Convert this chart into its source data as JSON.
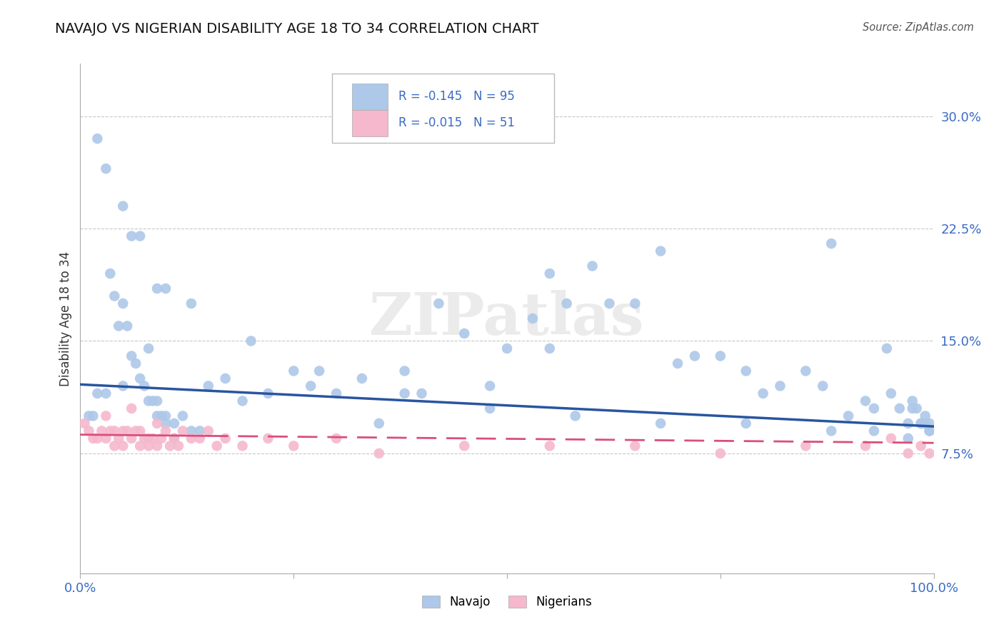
{
  "title": "NAVAJO VS NIGERIAN DISABILITY AGE 18 TO 34 CORRELATION CHART",
  "source_text": "Source: ZipAtlas.com",
  "ylabel": "Disability Age 18 to 34",
  "xlim": [
    0,
    1.0
  ],
  "ylim": [
    -0.005,
    0.335
  ],
  "yticks": [
    0.075,
    0.15,
    0.225,
    0.3
  ],
  "ytick_labels": [
    "7.5%",
    "15.0%",
    "22.5%",
    "30.0%"
  ],
  "navajo_R": -0.145,
  "navajo_N": 95,
  "nigerian_R": -0.015,
  "nigerian_N": 51,
  "navajo_color": "#adc8e8",
  "nigerian_color": "#f5b8cc",
  "navajo_line_color": "#2955a0",
  "nigerian_line_color": "#d94f7a",
  "background_color": "#ffffff",
  "grid_color": "#c8c8c8",
  "watermark_text": "ZIPatlas",
  "navajo_line_x0": 0.0,
  "navajo_line_y0": 0.121,
  "navajo_line_x1": 1.0,
  "navajo_line_y1": 0.093,
  "nigerian_line_x0": 0.0,
  "nigerian_line_y0": 0.0875,
  "nigerian_line_x1": 1.0,
  "nigerian_line_y1": 0.082,
  "navajo_x": [
    0.01,
    0.015,
    0.02,
    0.03,
    0.035,
    0.04,
    0.045,
    0.05,
    0.05,
    0.055,
    0.06,
    0.065,
    0.07,
    0.075,
    0.08,
    0.08,
    0.085,
    0.09,
    0.09,
    0.095,
    0.1,
    0.1,
    0.11,
    0.11,
    0.12,
    0.13,
    0.14,
    0.15,
    0.17,
    0.19,
    0.22,
    0.25,
    0.27,
    0.3,
    0.33,
    0.35,
    0.38,
    0.4,
    0.42,
    0.45,
    0.48,
    0.5,
    0.53,
    0.55,
    0.57,
    0.6,
    0.62,
    0.65,
    0.68,
    0.7,
    0.72,
    0.75,
    0.78,
    0.8,
    0.82,
    0.85,
    0.87,
    0.9,
    0.92,
    0.93,
    0.95,
    0.96,
    0.97,
    0.975,
    0.98,
    0.985,
    0.99,
    0.99,
    0.995,
    0.995,
    0.03,
    0.05,
    0.07,
    0.09,
    0.13,
    0.2,
    0.28,
    0.38,
    0.48,
    0.58,
    0.68,
    0.78,
    0.88,
    0.93,
    0.97,
    0.02,
    0.06,
    0.1,
    0.55,
    0.88,
    0.945,
    0.975,
    0.985,
    0.99,
    0.995
  ],
  "navajo_y": [
    0.1,
    0.1,
    0.115,
    0.115,
    0.195,
    0.18,
    0.16,
    0.175,
    0.12,
    0.16,
    0.14,
    0.135,
    0.125,
    0.12,
    0.11,
    0.145,
    0.11,
    0.11,
    0.1,
    0.1,
    0.1,
    0.095,
    0.095,
    0.085,
    0.1,
    0.09,
    0.09,
    0.12,
    0.125,
    0.11,
    0.115,
    0.13,
    0.12,
    0.115,
    0.125,
    0.095,
    0.13,
    0.115,
    0.175,
    0.155,
    0.12,
    0.145,
    0.165,
    0.195,
    0.175,
    0.2,
    0.175,
    0.175,
    0.21,
    0.135,
    0.14,
    0.14,
    0.13,
    0.115,
    0.12,
    0.13,
    0.12,
    0.1,
    0.11,
    0.105,
    0.115,
    0.105,
    0.095,
    0.11,
    0.105,
    0.095,
    0.095,
    0.1,
    0.095,
    0.09,
    0.265,
    0.24,
    0.22,
    0.185,
    0.175,
    0.15,
    0.13,
    0.115,
    0.105,
    0.1,
    0.095,
    0.095,
    0.09,
    0.09,
    0.085,
    0.285,
    0.22,
    0.185,
    0.145,
    0.215,
    0.145,
    0.105,
    0.095,
    0.095,
    0.09
  ],
  "nigerian_x": [
    0.005,
    0.01,
    0.015,
    0.02,
    0.025,
    0.03,
    0.03,
    0.035,
    0.04,
    0.04,
    0.045,
    0.05,
    0.05,
    0.055,
    0.06,
    0.06,
    0.065,
    0.07,
    0.07,
    0.075,
    0.08,
    0.08,
    0.085,
    0.09,
    0.09,
    0.095,
    0.1,
    0.105,
    0.11,
    0.115,
    0.12,
    0.13,
    0.14,
    0.15,
    0.16,
    0.17,
    0.19,
    0.22,
    0.25,
    0.3,
    0.35,
    0.45,
    0.55,
    0.65,
    0.75,
    0.85,
    0.92,
    0.95,
    0.97,
    0.985,
    0.995
  ],
  "nigerian_y": [
    0.095,
    0.09,
    0.085,
    0.085,
    0.09,
    0.1,
    0.085,
    0.09,
    0.09,
    0.08,
    0.085,
    0.09,
    0.08,
    0.09,
    0.105,
    0.085,
    0.09,
    0.09,
    0.08,
    0.085,
    0.085,
    0.08,
    0.085,
    0.095,
    0.08,
    0.085,
    0.09,
    0.08,
    0.085,
    0.08,
    0.09,
    0.085,
    0.085,
    0.09,
    0.08,
    0.085,
    0.08,
    0.085,
    0.08,
    0.085,
    0.075,
    0.08,
    0.08,
    0.08,
    0.075,
    0.08,
    0.08,
    0.085,
    0.075,
    0.08,
    0.075
  ],
  "legend_navajo_label": "Navajo",
  "legend_nigerian_label": "Nigerians"
}
